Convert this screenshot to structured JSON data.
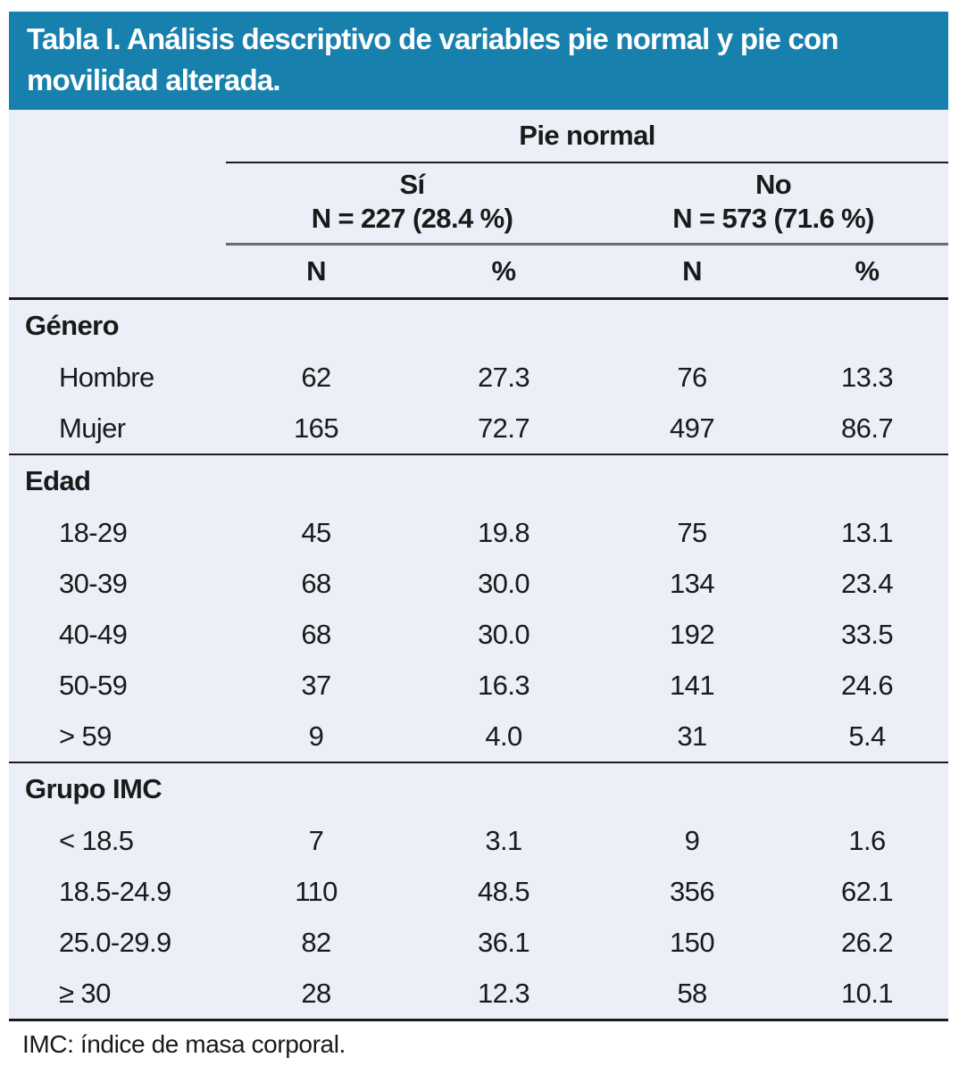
{
  "title": "Tabla I. Análisis descriptivo de variables pie normal y pie con movilidad alterada.",
  "header": {
    "span_label": "Pie normal",
    "groups": [
      {
        "label": "Sí",
        "sublabel": "N = 227 (28.4 %)"
      },
      {
        "label": "No",
        "sublabel": "N = 573 (71.6 %)"
      }
    ],
    "columns": {
      "n1": "N",
      "p1": "%",
      "n2": "N",
      "p2": "%"
    }
  },
  "sections": [
    {
      "name": "Género",
      "rows": [
        {
          "label": "Hombre",
          "values": [
            "62",
            "27.3",
            "76",
            "13.3"
          ]
        },
        {
          "label": "Mujer",
          "values": [
            "165",
            "72.7",
            "497",
            "86.7"
          ]
        }
      ]
    },
    {
      "name": "Edad",
      "rows": [
        {
          "label": "18-29",
          "values": [
            "45",
            "19.8",
            "75",
            "13.1"
          ]
        },
        {
          "label": "30-39",
          "values": [
            "68",
            "30.0",
            "134",
            "23.4"
          ]
        },
        {
          "label": "40-49",
          "values": [
            "68",
            "30.0",
            "192",
            "33.5"
          ]
        },
        {
          "label": "50-59",
          "values": [
            "37",
            "16.3",
            "141",
            "24.6"
          ]
        },
        {
          "label": "> 59",
          "values": [
            "9",
            "4.0",
            "31",
            "5.4"
          ]
        }
      ]
    },
    {
      "name": "Grupo IMC",
      "rows": [
        {
          "label": "< 18.5",
          "values": [
            "7",
            "3.1",
            "9",
            "1.6"
          ]
        },
        {
          "label": "18.5-24.9",
          "values": [
            "110",
            "48.5",
            "356",
            "62.1"
          ]
        },
        {
          "label": "25.0-29.9",
          "values": [
            "82",
            "36.1",
            "150",
            "26.2"
          ]
        },
        {
          "label": "≥ 30",
          "values": [
            "28",
            "12.3",
            "58",
            "10.1"
          ]
        }
      ]
    }
  ],
  "footnote": "IMC: índice de masa corporal.",
  "colors": {
    "title_bg": "#1880ad",
    "title_text": "#ffffff",
    "panel_bg": "#ebeff7",
    "rule_dark": "#1c1c1c",
    "rule_grey": "#6b6b6b",
    "text": "#1a1a1a"
  }
}
